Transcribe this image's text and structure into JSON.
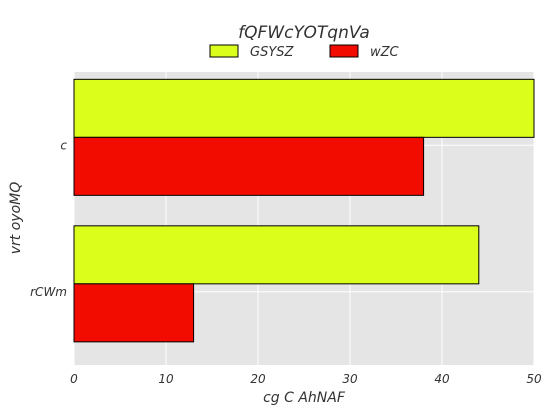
{
  "chart_data": {
    "type": "bar",
    "orientation": "horizontal",
    "title": "fQFWcYOTqnVa",
    "xlabel": "cg C AhNAF",
    "ylabel": "vrt oyoMQ",
    "categories": [
      "c",
      "rCWm"
    ],
    "series": [
      {
        "name": "GSYSZ",
        "color": "#dbff1a",
        "values": [
          50,
          44
        ]
      },
      {
        "name": "wZC",
        "color": "#f20c00",
        "values": [
          38,
          13
        ]
      }
    ],
    "xlim": [
      0,
      50
    ],
    "xticks": [
      "0",
      "10",
      "20",
      "30",
      "40",
      "50"
    ],
    "grid": true,
    "legend_position": "top-center"
  }
}
